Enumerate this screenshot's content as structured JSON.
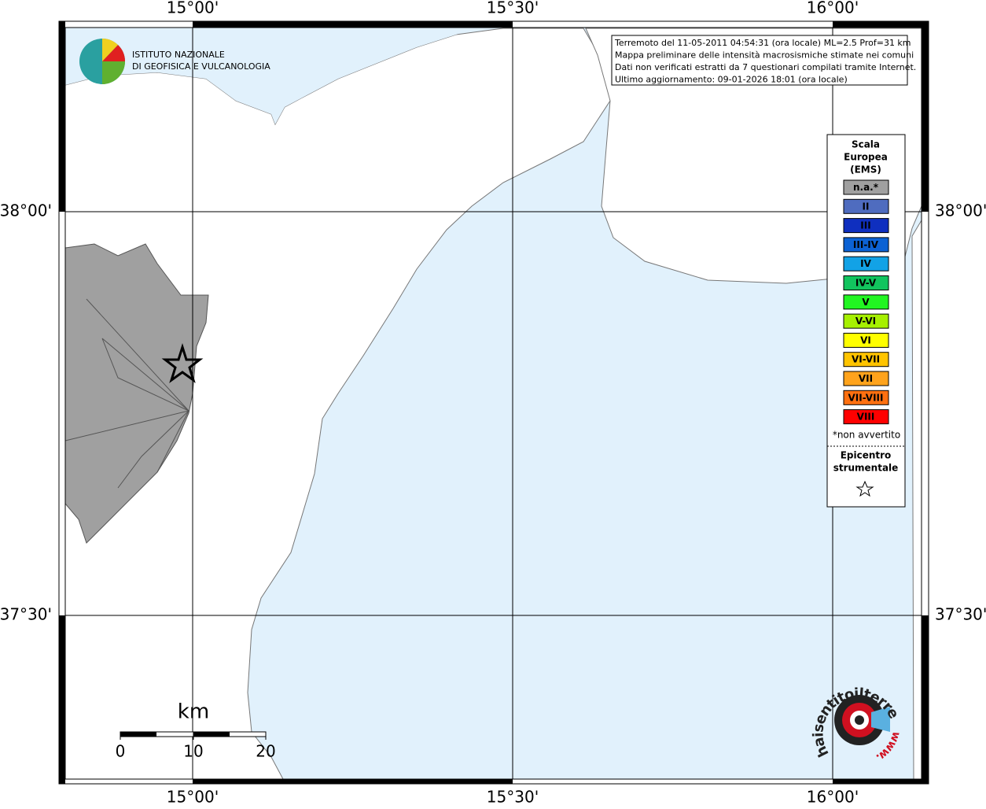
{
  "logo": {
    "line1": "ISTITUTO NAZIONALE",
    "line2": "DI GEOFISICA E VULCANOLOGIA"
  },
  "info": [
    "Terremoto del 11-05-2011 04:54:31 (ora locale) ML=2.5 Prof=31 km",
    "Mappa preliminare delle intensità macrosismiche stimate nei comuni",
    "Dati non verificati estratti da 7 questionari compilati tramite Internet.",
    "Ultimo aggiornamento: 09-01-2026 18:01 (ora locale)"
  ],
  "legend": {
    "title": [
      "Scala",
      "Europea",
      "(EMS)"
    ],
    "items": [
      {
        "label": "n.a.*",
        "color": "#a0a0a0"
      },
      {
        "label": "II",
        "color": "#4f6cbf"
      },
      {
        "label": "III",
        "color": "#0f2fbf"
      },
      {
        "label": "III-IV",
        "color": "#0c62d4"
      },
      {
        "label": "IV",
        "color": "#12a2e6"
      },
      {
        "label": "IV-V",
        "color": "#12c45e"
      },
      {
        "label": "V",
        "color": "#22f522"
      },
      {
        "label": "V-VI",
        "color": "#a6f000"
      },
      {
        "label": "VI",
        "color": "#ffff00"
      },
      {
        "label": "VI-VII",
        "color": "#ffc400"
      },
      {
        "label": "VII",
        "color": "#ffa31c"
      },
      {
        "label": "VII-VIII",
        "color": "#ff7010"
      },
      {
        "label": "VIII",
        "color": "#ff0000"
      }
    ],
    "note": "*non avvertito",
    "epicenter": [
      "Epicentro",
      "strumentale"
    ]
  },
  "axes": {
    "top": [
      "15°00'",
      "15°30'",
      "16°00'"
    ],
    "bottom": [
      "15°00'",
      "15°30'",
      "16°00'"
    ],
    "left": [
      "38°00'",
      "37°30'"
    ],
    "right": [
      "38°00'",
      "37°30'"
    ]
  },
  "scale": {
    "unit": "km",
    "ticks": [
      "0",
      "10",
      "20"
    ]
  },
  "watermark": {
    "site": "haisentitoilterremoto.it",
    "prefix": "www."
  }
}
